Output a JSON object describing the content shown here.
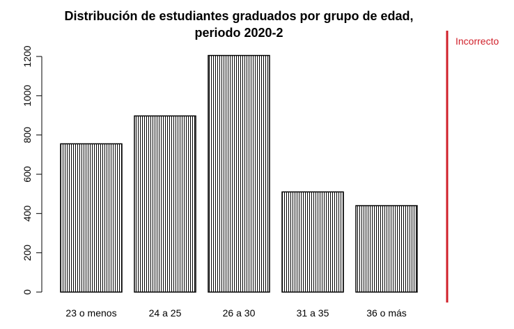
{
  "chart_data": {
    "type": "bar",
    "title": [
      "Distribución de estudiantes graduados por grupo de edad,",
      "periodo 2020-2"
    ],
    "xlabel": "",
    "ylabel": "",
    "categories": [
      "23 o menos",
      "24 a 25",
      "26 a 30",
      "31 a 35",
      "36 o más"
    ],
    "values": [
      755,
      897,
      1205,
      510,
      440
    ],
    "ylim": [
      0,
      1200
    ],
    "yticks": [
      0,
      200,
      400,
      600,
      800,
      1000,
      1200
    ],
    "fill": "vertical-hatch",
    "bar_color": "#000000",
    "grid": false,
    "legend": "none"
  },
  "status": {
    "label": "Incorrecto",
    "color": "#d0202a"
  }
}
